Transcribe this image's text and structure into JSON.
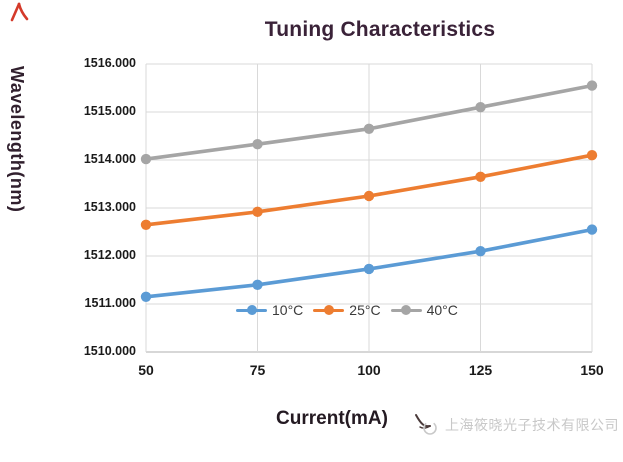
{
  "title": {
    "text": "Tuning Characteristics",
    "color": "#3a2238"
  },
  "corner_mark": {
    "shape": "red-stroke-mark",
    "color": "#d43a2a"
  },
  "y_axis": {
    "title": "Wavelength(nm)",
    "title_color": "#31202e",
    "tick_labels": [
      "1510.000",
      "1511.000",
      "1512.000",
      "1513.000",
      "1514.000",
      "1515.000",
      "1516.000"
    ]
  },
  "x_axis": {
    "title": "Current(mA)",
    "title_color": "#241a22",
    "tick_labels": [
      "50",
      "75",
      "100",
      "125",
      "150"
    ]
  },
  "legend": {
    "position": "bottom-inside"
  },
  "watermark": {
    "text": "上海筱晓光子技术有限公司",
    "color": "#c8c8c8",
    "logo": "bird-swoosh-logo"
  },
  "grid_color": "#d9d9d9",
  "axis_line_color": "#bfbfbf",
  "chart_data": {
    "type": "line",
    "title": "Tuning Characteristics",
    "xlabel": "Current(mA)",
    "ylabel": "Wavelength(nm)",
    "x": [
      50,
      75,
      100,
      125,
      150
    ],
    "ylim": [
      1510,
      1516
    ],
    "xlim": [
      50,
      150
    ],
    "grid": true,
    "legend_position": "bottom-inside",
    "series": [
      {
        "name": "10°C",
        "color": "#5B9BD5",
        "values": [
          1511.15,
          1511.4,
          1511.73,
          1512.1,
          1512.55
        ]
      },
      {
        "name": "25°C",
        "color": "#ED7D31",
        "values": [
          1512.65,
          1512.92,
          1513.25,
          1513.65,
          1514.1
        ]
      },
      {
        "name": "40°C",
        "color": "#A5A5A5",
        "values": [
          1514.02,
          1514.33,
          1514.65,
          1515.1,
          1515.55
        ]
      }
    ]
  }
}
